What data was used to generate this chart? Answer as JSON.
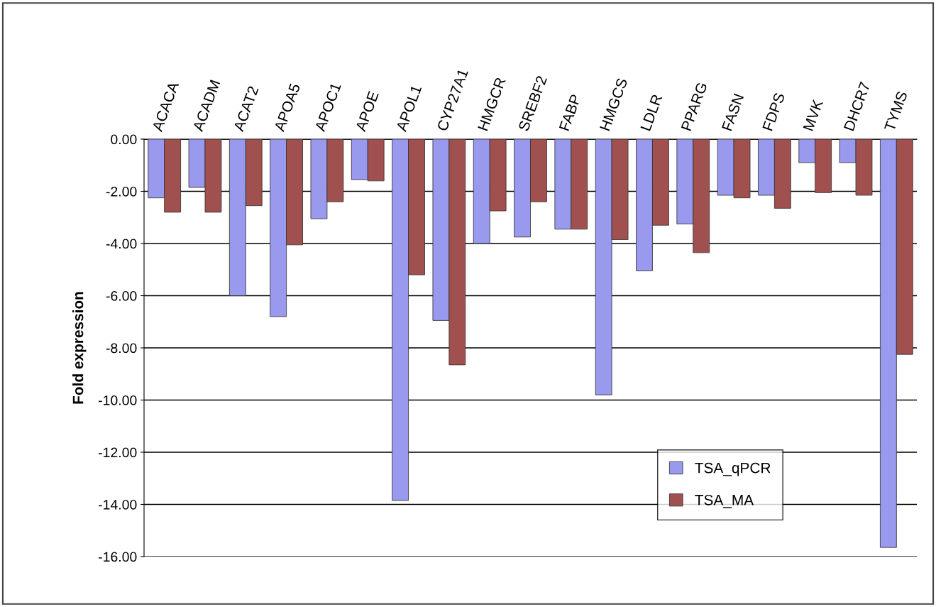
{
  "chart_data": {
    "type": "bar",
    "ylabel": "Fold expression",
    "categories": [
      "ACACA",
      "ACADM",
      "ACAT2",
      "APOA5",
      "APOC1",
      "APOE",
      "APOL1",
      "CYP27A1",
      "HMGCR",
      "SREBF2",
      "FABP",
      "HMGCS",
      "LDLR",
      "PPARG",
      "FASN",
      "FDPS",
      "MVK",
      "DHCR7",
      "TYMS"
    ],
    "series": [
      {
        "name": "TSA_qPCR",
        "color": "#9999ee",
        "values": [
          -2.25,
          -1.85,
          -6.0,
          -6.8,
          -3.05,
          -1.55,
          -13.85,
          -6.95,
          -4.0,
          -3.75,
          -3.45,
          -9.8,
          -5.05,
          -3.25,
          -2.15,
          -2.15,
          -0.9,
          -0.9,
          -15.65
        ]
      },
      {
        "name": "TSA_MA",
        "color": "#a0504f",
        "values": [
          -2.8,
          -2.8,
          -2.55,
          -4.05,
          -2.4,
          -1.6,
          -5.2,
          -8.65,
          -2.75,
          -2.4,
          -3.45,
          -3.85,
          -3.3,
          -4.35,
          -2.25,
          -2.65,
          -2.05,
          -2.15,
          -8.25
        ]
      }
    ],
    "ylim": [
      -16,
      0
    ],
    "yticks": [
      {
        "value": 0,
        "label": "0.00"
      },
      {
        "value": -2,
        "label": "-2.00"
      },
      {
        "value": -4,
        "label": "-4.00"
      },
      {
        "value": -6,
        "label": "-6.00"
      },
      {
        "value": -8,
        "label": "-8.00"
      },
      {
        "value": -10,
        "label": "-10.00"
      },
      {
        "value": -12,
        "label": "-12.00"
      },
      {
        "value": -14,
        "label": "-14.00"
      },
      {
        "value": -16,
        "label": "-16.00"
      }
    ],
    "grid": "y",
    "legend": "bottom right"
  }
}
